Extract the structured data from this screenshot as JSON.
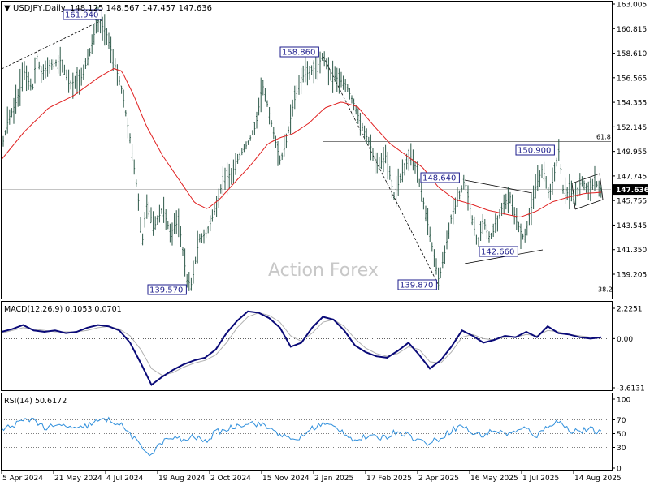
{
  "header": {
    "symbol": "USDJPY,Daily",
    "ohlc": "148.125 148.567 147.457 147.636",
    "watermark": "Action Forex"
  },
  "colors": {
    "price_bar": "#2e5a4a",
    "ma_line": "#e02020",
    "macd_main": "#0a0a78",
    "macd_signal": "#b0b0b0",
    "rsi_line": "#2f8fdc",
    "grid_dotted": "#000000",
    "label_box": "#1e1e8c",
    "price_box_bg": "#000000"
  },
  "chart_data": [
    {
      "type": "ohlc",
      "title": "USDJPY,Daily",
      "ohlc_label": "148.125 148.567 147.457 147.636",
      "current_price": 147.636,
      "ylim": [
        138.6,
        163.3
      ],
      "y_ticks": [
        "163.005",
        "160.815",
        "158.610",
        "156.565",
        "154.355",
        "152.145",
        "149.955",
        "147.745",
        "145.755",
        "143.545",
        "141.350",
        "139.205"
      ],
      "x_ticks": [
        "5 Apr 2024",
        "21 May 2024",
        "4 Jul 2024",
        "19 Aug 2024",
        "2 Oct 2024",
        "15 Nov 2024",
        "2 Jan 2025",
        "17 Feb 2025",
        "2 Apr 2025",
        "16 May 2025",
        "1 Jul 2025",
        "14 Aug 2025"
      ],
      "close_series_anchors": [
        [
          0,
          150.5
        ],
        [
          10,
          153.5
        ],
        [
          20,
          155.0
        ],
        [
          30,
          157.5
        ],
        [
          40,
          156.0
        ],
        [
          45,
          159.0
        ],
        [
          50,
          157.5
        ],
        [
          60,
          158.0
        ],
        [
          75,
          158.5
        ],
        [
          85,
          156.5
        ],
        [
          100,
          157.0
        ],
        [
          110,
          159.0
        ],
        [
          120,
          161.9
        ],
        [
          130,
          161.0
        ],
        [
          140,
          158.5
        ],
        [
          150,
          156.0
        ],
        [
          160,
          152.0
        ],
        [
          170,
          147.0
        ],
        [
          175,
          143.0
        ],
        [
          180,
          146.5
        ],
        [
          190,
          144.5
        ],
        [
          200,
          146.0
        ],
        [
          210,
          144.0
        ],
        [
          220,
          145.0
        ],
        [
          230,
          140.0
        ],
        [
          236,
          139.6
        ],
        [
          245,
          143.5
        ],
        [
          255,
          144.0
        ],
        [
          265,
          146.0
        ],
        [
          275,
          148.5
        ],
        [
          285,
          149.0
        ],
        [
          295,
          150.5
        ],
        [
          305,
          151.5
        ],
        [
          315,
          153.0
        ],
        [
          323,
          156.5
        ],
        [
          330,
          154.5
        ],
        [
          338,
          152.0
        ],
        [
          345,
          150.0
        ],
        [
          352,
          151.5
        ],
        [
          360,
          154.5
        ],
        [
          370,
          157.0
        ],
        [
          380,
          157.5
        ],
        [
          390,
          158.0
        ],
        [
          398,
          158.9
        ],
        [
          405,
          157.5
        ],
        [
          415,
          157.0
        ],
        [
          425,
          156.5
        ],
        [
          435,
          155.0
        ],
        [
          445,
          153.0
        ],
        [
          455,
          151.5
        ],
        [
          465,
          149.5
        ],
        [
          475,
          150.5
        ],
        [
          485,
          147.0
        ],
        [
          495,
          149.0
        ],
        [
          505,
          150.5
        ],
        [
          512,
          149.5
        ],
        [
          520,
          147.0
        ],
        [
          530,
          143.5
        ],
        [
          540,
          140.0
        ],
        [
          548,
          142.5
        ],
        [
          556,
          145.5
        ],
        [
          565,
          147.0
        ],
        [
          572,
          148.5
        ],
        [
          580,
          145.5
        ],
        [
          588,
          143.0
        ],
        [
          595,
          145.0
        ],
        [
          603,
          143.5
        ],
        [
          610,
          144.5
        ],
        [
          620,
          146.5
        ],
        [
          628,
          147.0
        ],
        [
          635,
          145.0
        ],
        [
          645,
          143.5
        ],
        [
          652,
          145.5
        ],
        [
          660,
          148.0
        ],
        [
          668,
          149.5
        ],
        [
          676,
          147.0
        ],
        [
          684,
          149.5
        ],
        [
          688,
          150.9
        ],
        [
          694,
          147.0
        ],
        [
          700,
          147.5
        ],
        [
          708,
          147.0
        ],
        [
          716,
          148.5
        ],
        [
          724,
          147.5
        ],
        [
          732,
          148.2
        ],
        [
          740,
          147.6
        ]
      ],
      "ma_series_anchors": [
        [
          0,
          150.0
        ],
        [
          30,
          152.5
        ],
        [
          60,
          154.5
        ],
        [
          90,
          155.5
        ],
        [
          120,
          157.0
        ],
        [
          140,
          157.8
        ],
        [
          150,
          157.6
        ],
        [
          165,
          155.5
        ],
        [
          180,
          153.0
        ],
        [
          200,
          150.5
        ],
        [
          220,
          148.5
        ],
        [
          240,
          146.5
        ],
        [
          255,
          146.0
        ],
        [
          270,
          146.8
        ],
        [
          290,
          148.3
        ],
        [
          310,
          149.8
        ],
        [
          330,
          151.5
        ],
        [
          345,
          152.0
        ],
        [
          360,
          152.3
        ],
        [
          380,
          153.2
        ],
        [
          400,
          154.5
        ],
        [
          420,
          155.0
        ],
        [
          440,
          154.6
        ],
        [
          460,
          153.0
        ],
        [
          480,
          151.5
        ],
        [
          500,
          150.5
        ],
        [
          520,
          149.5
        ],
        [
          540,
          147.8
        ],
        [
          560,
          146.8
        ],
        [
          580,
          146.4
        ],
        [
          600,
          145.9
        ],
        [
          620,
          145.6
        ],
        [
          640,
          145.3
        ],
        [
          660,
          145.8
        ],
        [
          680,
          146.6
        ],
        [
          700,
          147.0
        ],
        [
          720,
          147.3
        ],
        [
          740,
          147.4
        ]
      ],
      "annotations": [
        "161.940",
        "158.860",
        "148.640",
        "150.900",
        "142.660",
        "139.570",
        "139.870",
        "61.8",
        "38.2"
      ]
    },
    {
      "type": "line",
      "title": "MACD(12,26,9) 0.1053 0.0701",
      "ylim": [
        -3.6131,
        2.2251
      ],
      "y_ticks": [
        "2.2251",
        "0.00",
        "-3.6131"
      ],
      "series": [
        {
          "name": "MACD",
          "values": [
            0.5,
            0.7,
            1.0,
            0.6,
            0.5,
            0.6,
            0.4,
            0.5,
            0.8,
            1.0,
            0.9,
            0.6,
            -0.3,
            -1.8,
            -3.4,
            -2.8,
            -2.3,
            -1.9,
            -1.6,
            -1.4,
            -0.8,
            0.4,
            1.3,
            2.0,
            1.9,
            1.5,
            0.8,
            -0.6,
            -0.3,
            0.8,
            1.6,
            1.4,
            0.6,
            -0.5,
            -1.0,
            -1.3,
            -1.4,
            -0.9,
            -0.3,
            -1.2,
            -2.2,
            -1.6,
            -0.6,
            0.6,
            0.2,
            -0.3,
            -0.1,
            0.2,
            0.1,
            0.5,
            0.1,
            0.9,
            0.4,
            0.3,
            0.1,
            0.0,
            0.1
          ]
        },
        {
          "name": "Signal",
          "values": [
            0.4,
            0.6,
            0.8,
            0.7,
            0.6,
            0.5,
            0.5,
            0.5,
            0.6,
            0.8,
            0.9,
            0.7,
            0.2,
            -0.8,
            -2.2,
            -2.7,
            -2.5,
            -2.1,
            -1.8,
            -1.6,
            -1.2,
            -0.3,
            0.8,
            1.6,
            1.9,
            1.7,
            1.2,
            0.2,
            -0.2,
            0.4,
            1.2,
            1.4,
            0.9,
            0.0,
            -0.7,
            -1.1,
            -1.3,
            -1.1,
            -0.6,
            -0.8,
            -1.7,
            -1.8,
            -1.0,
            0.1,
            0.3,
            0.0,
            -0.1,
            0.1,
            0.1,
            0.3,
            0.2,
            0.6,
            0.5,
            0.3,
            0.2,
            0.1,
            0.07
          ]
        }
      ]
    },
    {
      "type": "line",
      "title": "RSI(14) 50.6172",
      "ylim": [
        0,
        100
      ],
      "y_ticks": [
        "100",
        "70",
        "50",
        "30",
        "0"
      ],
      "series": [
        {
          "name": "RSI",
          "values": [
            55,
            62,
            68,
            72,
            58,
            60,
            62,
            55,
            62,
            68,
            70,
            64,
            50,
            30,
            20,
            38,
            44,
            40,
            46,
            38,
            52,
            56,
            62,
            66,
            64,
            58,
            50,
            40,
            45,
            58,
            64,
            60,
            52,
            40,
            45,
            44,
            46,
            54,
            48,
            40,
            36,
            44,
            55,
            62,
            50,
            48,
            55,
            50,
            52,
            58,
            46,
            62,
            68,
            55,
            54,
            56,
            50.6
          ]
        }
      ]
    }
  ]
}
